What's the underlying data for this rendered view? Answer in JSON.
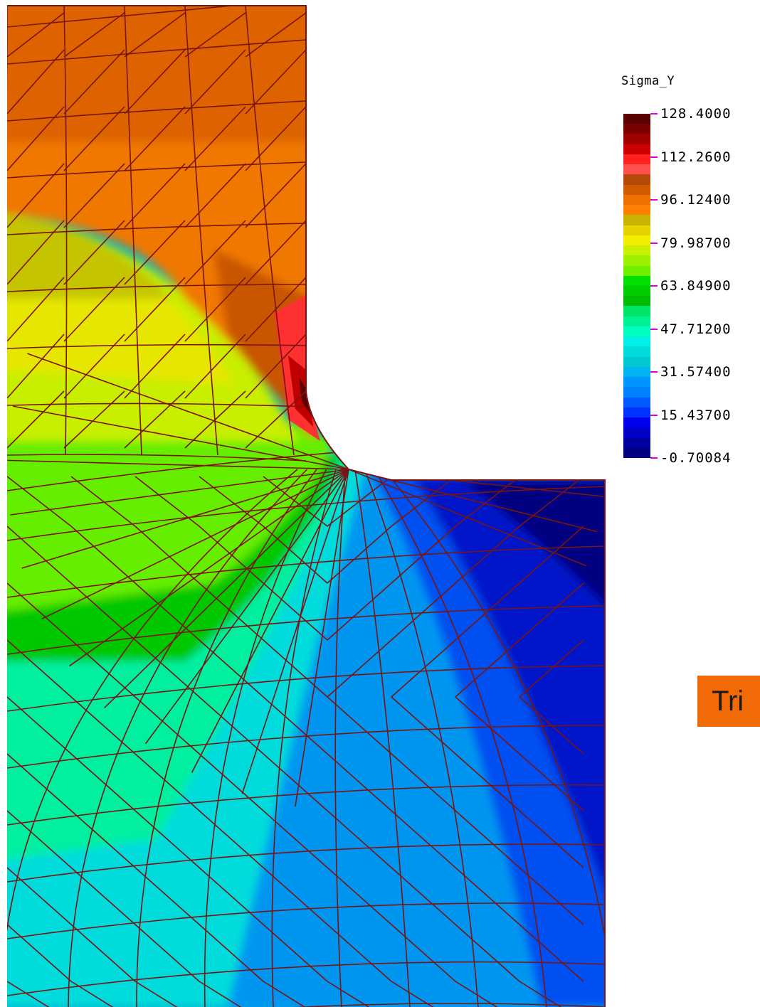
{
  "legend": {
    "title": "Sigma_Y",
    "ticks": [
      "128.4000",
      "112.2600",
      "96.12400",
      "79.98700",
      "63.84900",
      "47.71200",
      "31.57400",
      "15.43700",
      "-0.70084"
    ],
    "bands": [
      "#5a0000",
      "#7a0000",
      "#a00000",
      "#cc0000",
      "#ff2020",
      "#ff5050",
      "#b44a08",
      "#d25a00",
      "#f07000",
      "#ff8000",
      "#c8b400",
      "#e6d200",
      "#f2ee00",
      "#c8f000",
      "#9cf000",
      "#6ef000",
      "#00e000",
      "#00cc00",
      "#00bc00",
      "#00e664",
      "#00f096",
      "#00ffbe",
      "#00f0e6",
      "#00dcdc",
      "#00c8d2",
      "#00b4f0",
      "#0096ff",
      "#0082ff",
      "#005aff",
      "#0032ff",
      "#0000f0",
      "#0000c8",
      "#0000a0",
      "#000080"
    ]
  },
  "note": {
    "text": "Tri"
  },
  "colors": {
    "mesh": "#7a1414",
    "tick": "#e000e0"
  }
}
